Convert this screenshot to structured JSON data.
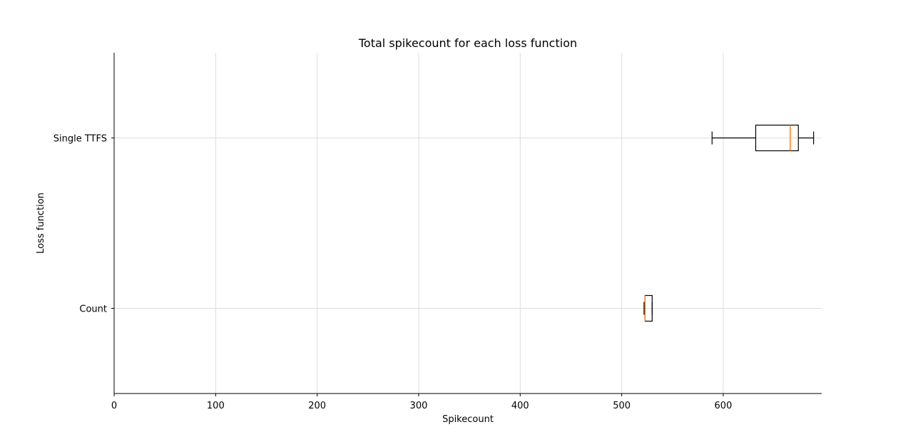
{
  "chart_data": {
    "type": "boxplot",
    "orientation": "horizontal",
    "title": "Total spikecount for each loss function",
    "xlabel": "Spikecount",
    "ylabel": "Loss function",
    "xlim": [
      0,
      697
    ],
    "xticks": [
      0,
      100,
      200,
      300,
      400,
      500,
      600
    ],
    "grid": true,
    "categories": [
      "Count",
      "Single TTFS"
    ],
    "boxes": [
      {
        "category": "Count",
        "whisker_low": 522,
        "q1": 523,
        "median": 523,
        "q3": 530,
        "whisker_high": 530
      },
      {
        "category": "Single TTFS",
        "whisker_low": 589,
        "q1": 632,
        "median": 666,
        "q3": 674,
        "whisker_high": 689
      }
    ],
    "colors": {
      "box_edge": "#000000",
      "median": "#ff7f0e",
      "grid": "#dddddd",
      "axis": "#000000"
    }
  }
}
